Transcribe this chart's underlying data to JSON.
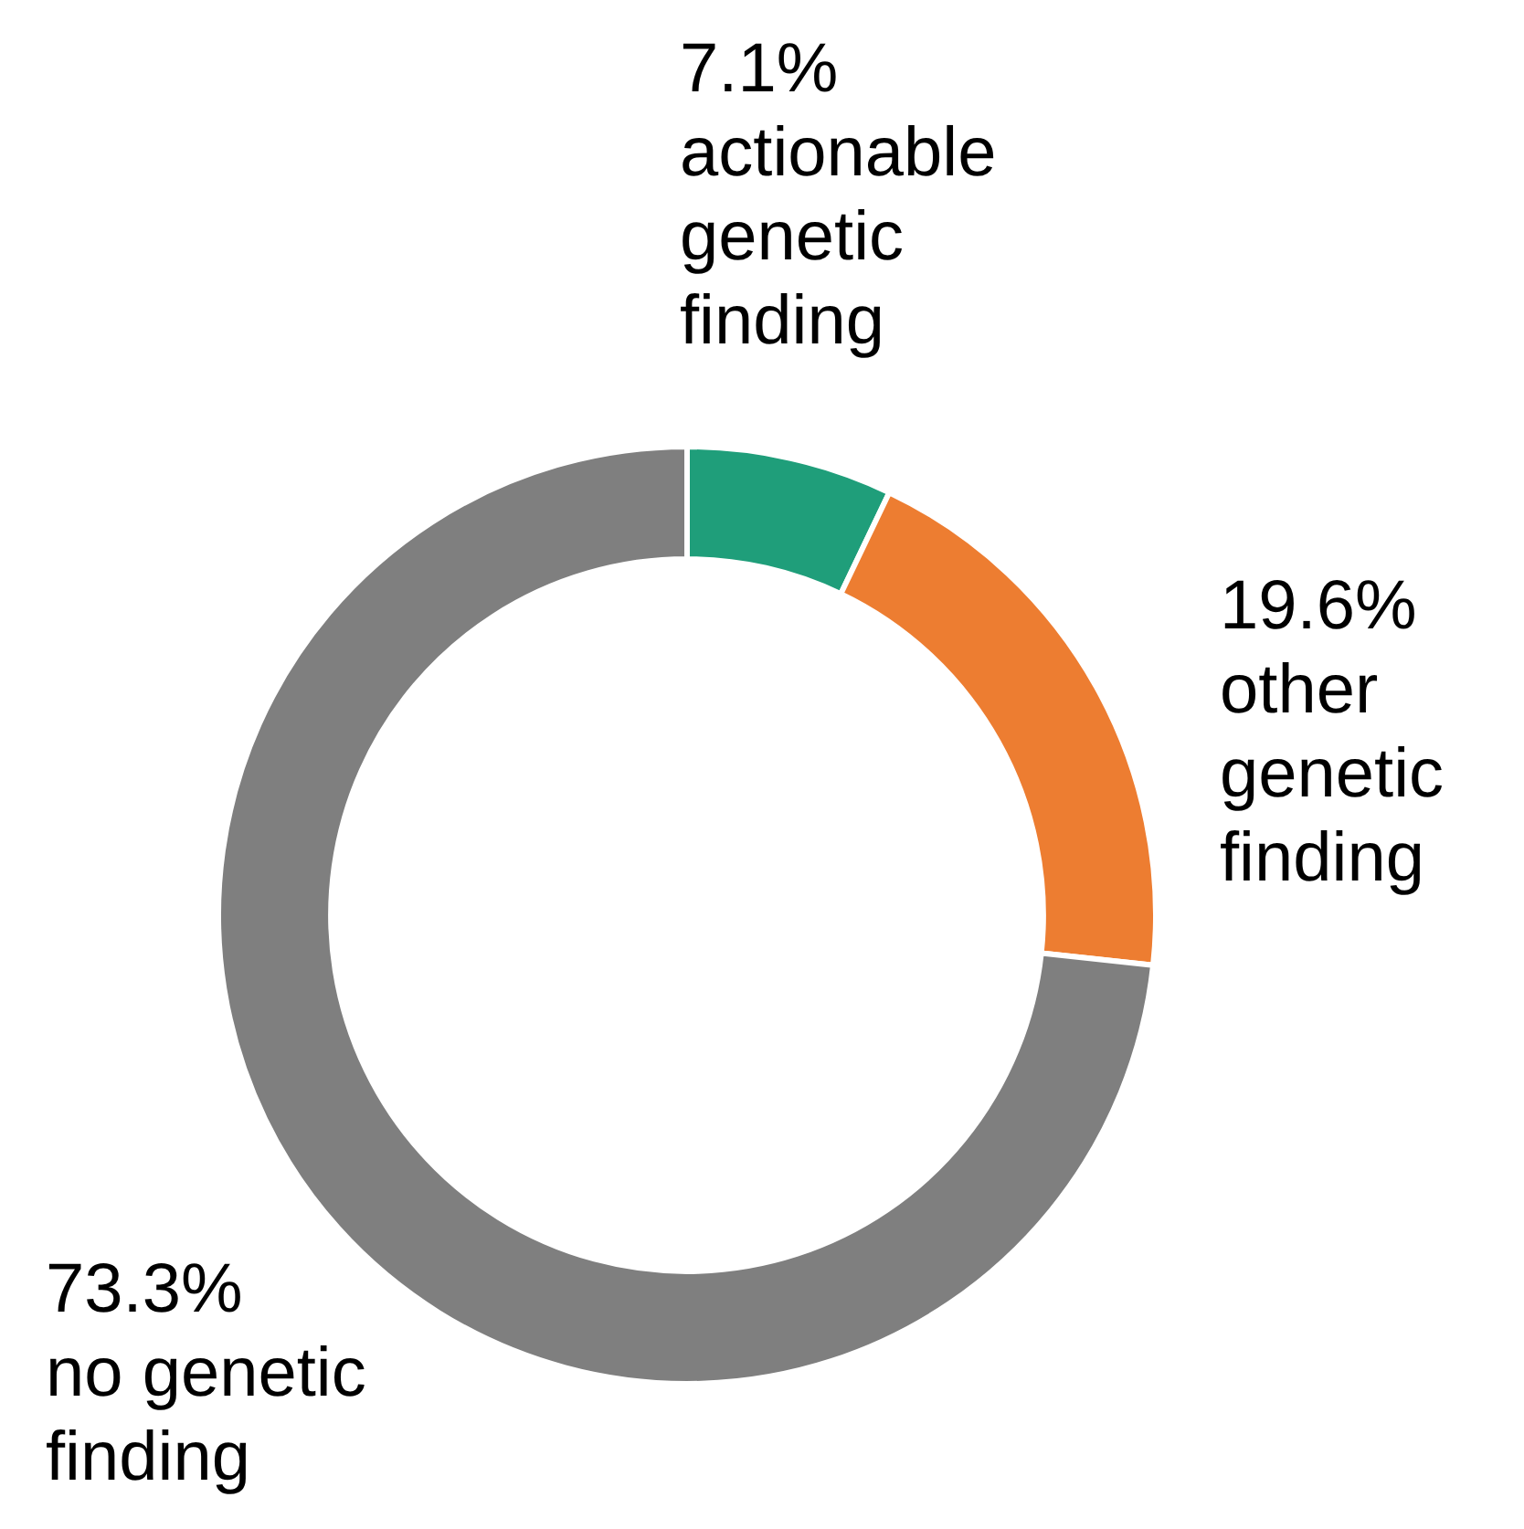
{
  "chart_data": {
    "type": "donut",
    "categories": [
      "actionable genetic finding",
      "other genetic finding",
      "no genetic finding"
    ],
    "values": [
      7.1,
      19.6,
      73.3
    ],
    "value_labels": [
      "7.1%",
      "19.6%",
      "73.3%"
    ],
    "colors": [
      "#1f9e7a",
      "#ed7d31",
      "#7f7f7f"
    ],
    "legend": false
  }
}
